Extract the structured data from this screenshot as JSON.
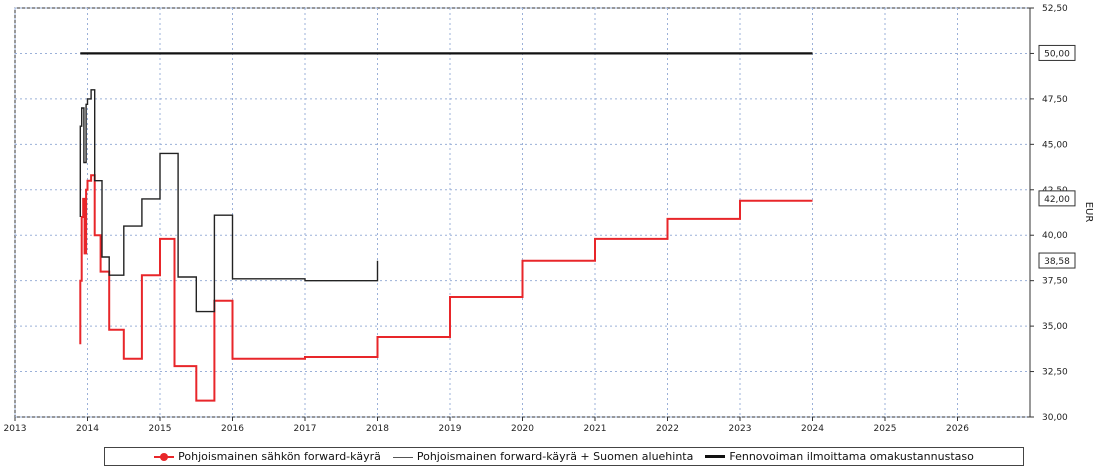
{
  "chart_data": {
    "type": "line",
    "ylabel": "EUR",
    "xlim": [
      2013,
      2027
    ],
    "ylim": [
      30,
      52.5
    ],
    "x_ticks": [
      "2013",
      "2014",
      "2015",
      "2016",
      "2017",
      "2018",
      "2019",
      "2020",
      "2021",
      "2022",
      "2023",
      "2024",
      "2025",
      "2026"
    ],
    "y_ticks": [
      "52,50",
      "50,00",
      "47,50",
      "45,00",
      "42,50",
      "40,00",
      "37,50",
      "35,00",
      "32,50",
      "30,00"
    ],
    "value_labels": [
      "50,00",
      "42,00",
      "38,58"
    ],
    "grid": true,
    "legend_position": "bottom",
    "series": [
      {
        "name": "Pohjoismainen sähkön forward-käyrä",
        "color": "#e8262a",
        "x": [
          2013.9,
          2013.9,
          2013.92,
          2013.92,
          2013.94,
          2013.94,
          2013.96,
          2013.96,
          2013.98,
          2013.98,
          2014.0,
          2014.0,
          2014.05,
          2014.05,
          2014.1,
          2014.1,
          2014.18,
          2014.18,
          2014.3,
          2014.3,
          2014.5,
          2014.5,
          2014.75,
          2014.75,
          2015.0,
          2015.0,
          2015.2,
          2015.2,
          2015.5,
          2015.5,
          2015.75,
          2015.75,
          2016.0,
          2016.0,
          2017.0,
          2017.0,
          2018.0,
          2018.0,
          2019.0,
          2019.0,
          2020.0,
          2020.0,
          2021.0,
          2021.0,
          2022.0,
          2022.0,
          2023.0,
          2023.0,
          2024.0
        ],
        "y": [
          34,
          37.5,
          37.5,
          41,
          41,
          42,
          42,
          39,
          39,
          42.5,
          42.5,
          43,
          43,
          43.3,
          43.3,
          40,
          40,
          38,
          38,
          34.8,
          34.8,
          33.2,
          33.2,
          37.8,
          37.8,
          39.8,
          39.8,
          32.8,
          32.8,
          30.9,
          30.9,
          36.4,
          36.4,
          33.2,
          33.2,
          33.3,
          33.3,
          34.4,
          34.4,
          36.6,
          36.6,
          38.6,
          38.6,
          39.8,
          39.8,
          40.9,
          40.9,
          41.9,
          41.9
        ]
      },
      {
        "name": "Pohjoismainen forward-käyrä + Suomen aluehinta",
        "color": "#222222",
        "x": [
          2013.9,
          2013.9,
          2013.92,
          2013.92,
          2013.95,
          2013.95,
          2013.98,
          2013.98,
          2014.0,
          2014.0,
          2014.05,
          2014.05,
          2014.1,
          2014.1,
          2014.2,
          2014.2,
          2014.3,
          2014.3,
          2014.5,
          2014.5,
          2014.75,
          2014.75,
          2015.0,
          2015.0,
          2015.25,
          2015.25,
          2015.5,
          2015.5,
          2015.75,
          2015.75,
          2016.0,
          2016.0,
          2017.0,
          2017.0,
          2018.0,
          2018.0
        ],
        "y": [
          41,
          46,
          46,
          47,
          47,
          44,
          44,
          47.2,
          47.2,
          47.5,
          47.5,
          48,
          48,
          43,
          43,
          38.8,
          38.8,
          37.8,
          37.8,
          40.5,
          40.5,
          42,
          42,
          44.5,
          44.5,
          37.7,
          37.7,
          35.8,
          35.8,
          41.1,
          41.1,
          37.6,
          37.6,
          37.5,
          37.5,
          38.6
        ]
      },
      {
        "name": "Fennovoiman ilmoittama omakustannustaso",
        "color": "#111111",
        "x": [
          2013.9,
          2024.0
        ],
        "y": [
          50,
          50
        ]
      }
    ]
  }
}
